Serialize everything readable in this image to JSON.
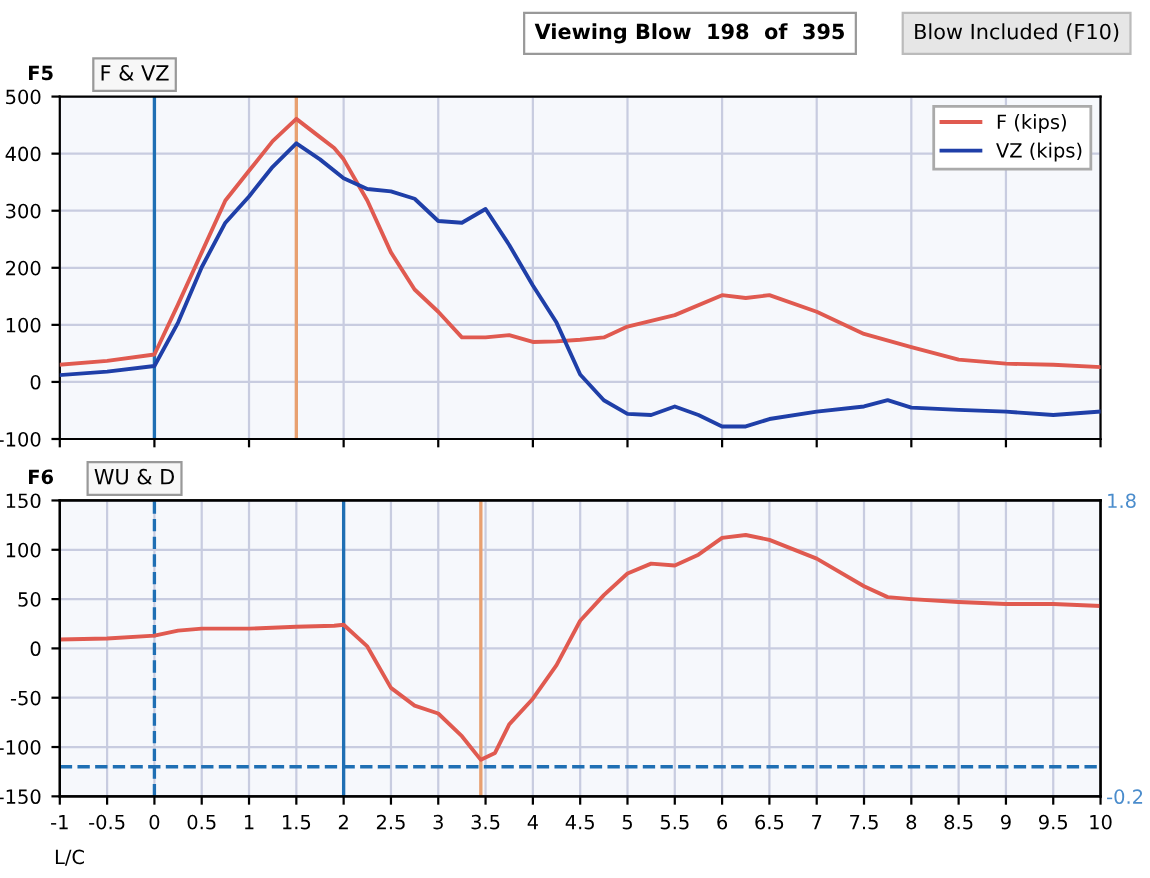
{
  "chart_data": [
    {
      "type": "line",
      "title": "F & VZ",
      "annotations": [
        "F5",
        "Viewing Blow  198  of  395",
        "Blow Included (F10)"
      ],
      "x": [
        -1,
        -0.5,
        0,
        0.25,
        0.5,
        0.75,
        1.0,
        1.25,
        1.5,
        1.75,
        1.9,
        2.0,
        2.25,
        2.5,
        2.75,
        3.0,
        3.25,
        3.5,
        3.75,
        4.0,
        4.25,
        4.5,
        4.75,
        5.0,
        5.5,
        6.0,
        6.25,
        6.5,
        7.0,
        7.5,
        8.0,
        8.5,
        9.0,
        9.5,
        10
      ],
      "series": [
        {
          "name": "F (kips)",
          "color": "#e05a50",
          "values": [
            30,
            37,
            48,
            136,
            227,
            318,
            370,
            422,
            461,
            429,
            410,
            390,
            318,
            227,
            162,
            123,
            78,
            78,
            82,
            70,
            71,
            74,
            78,
            97,
            117,
            152,
            147,
            152,
            123,
            84,
            61,
            39,
            32,
            30,
            26
          ]
        },
        {
          "name": "VZ (kips)",
          "color": "#1f3fa8",
          "x": [
            -1,
            -0.5,
            0,
            0.25,
            0.5,
            0.75,
            1.0,
            1.25,
            1.5,
            1.75,
            2.0,
            2.25,
            2.5,
            2.75,
            3.0,
            3.25,
            3.5,
            3.75,
            4.0,
            4.25,
            4.5,
            4.75,
            5.0,
            5.25,
            5.5,
            5.75,
            6.0,
            6.25,
            6.5,
            7.0,
            7.5,
            7.75,
            8.0,
            8.5,
            9.0,
            9.5,
            10
          ],
          "values": [
            12,
            18,
            28,
            104,
            201,
            279,
            325,
            377,
            418,
            390,
            357,
            338,
            334,
            321,
            282,
            279,
            303,
            240,
            169,
            104,
            13,
            -32,
            -56,
            -58,
            -43,
            -58,
            -78,
            -78,
            -65,
            -52,
            -43,
            -32,
            -45,
            -49,
            -52,
            -58,
            -52
          ]
        }
      ],
      "xlim": [
        -1,
        10
      ],
      "xticks": [
        -1,
        0,
        1,
        2,
        3,
        4,
        5,
        6,
        7,
        8,
        9,
        10
      ],
      "ylim": [
        -100,
        500
      ],
      "yticks": [
        -100,
        0,
        100,
        200,
        300,
        400,
        500
      ],
      "tick_labels": "y",
      "grid": true,
      "legend": "top right",
      "ref_lines": [
        {
          "axis": "x",
          "value": 0,
          "color": "#1f6fb4",
          "line_style": "solid"
        },
        {
          "axis": "x",
          "value": 1.5,
          "color": "#e8a070",
          "line_style": "solid"
        }
      ]
    },
    {
      "type": "line",
      "title": "WU & D",
      "annotations": [
        "F6",
        "L/C"
      ],
      "x": [
        -1,
        -0.5,
        0,
        0.25,
        0.5,
        1,
        1.5,
        1.9,
        2.0,
        2.25,
        2.5,
        2.75,
        3.0,
        3.25,
        3.45,
        3.6,
        3.75,
        4.0,
        4.25,
        4.5,
        4.75,
        5.0,
        5.25,
        5.5,
        5.75,
        6.0,
        6.25,
        6.5,
        7.0,
        7.5,
        7.75,
        8,
        8.5,
        9,
        9.5,
        10
      ],
      "series": [
        {
          "color": "#e05a50",
          "values": [
            9,
            10,
            13,
            18,
            20,
            20,
            22,
            23,
            24,
            2,
            -40,
            -58,
            -66,
            -89,
            -113,
            -106,
            -77,
            -51,
            -17,
            28,
            54,
            76,
            86,
            84,
            95,
            112,
            115,
            110,
            91,
            63,
            52,
            50,
            47,
            45,
            45,
            43
          ]
        }
      ],
      "xlim": [
        -1,
        10
      ],
      "xticks": [
        -1,
        -0.5,
        0,
        0.5,
        1,
        1.5,
        2,
        2.5,
        3,
        3.5,
        4,
        4.5,
        5,
        5.5,
        6,
        6.5,
        7,
        7.5,
        8,
        8.5,
        9,
        9.5,
        10
      ],
      "ylim": [
        -150,
        150
      ],
      "yticks": [
        -150,
        -100,
        -50,
        0,
        50,
        100,
        150
      ],
      "y2lim": [
        -0.2,
        1.8
      ],
      "y2ticks": [
        -0.2,
        1.8
      ],
      "grid": true,
      "ref_lines": [
        {
          "axis": "x",
          "value": 0,
          "color": "#1f6fb4",
          "line_style": "dashed"
        },
        {
          "axis": "x",
          "value": 2,
          "color": "#1f6fb4",
          "line_style": "solid"
        },
        {
          "axis": "x",
          "value": 3.45,
          "color": "#e8a070",
          "line_style": "solid"
        },
        {
          "axis": "y",
          "value": -120,
          "color": "#1f6fb4",
          "line_style": "dashed"
        }
      ]
    }
  ]
}
